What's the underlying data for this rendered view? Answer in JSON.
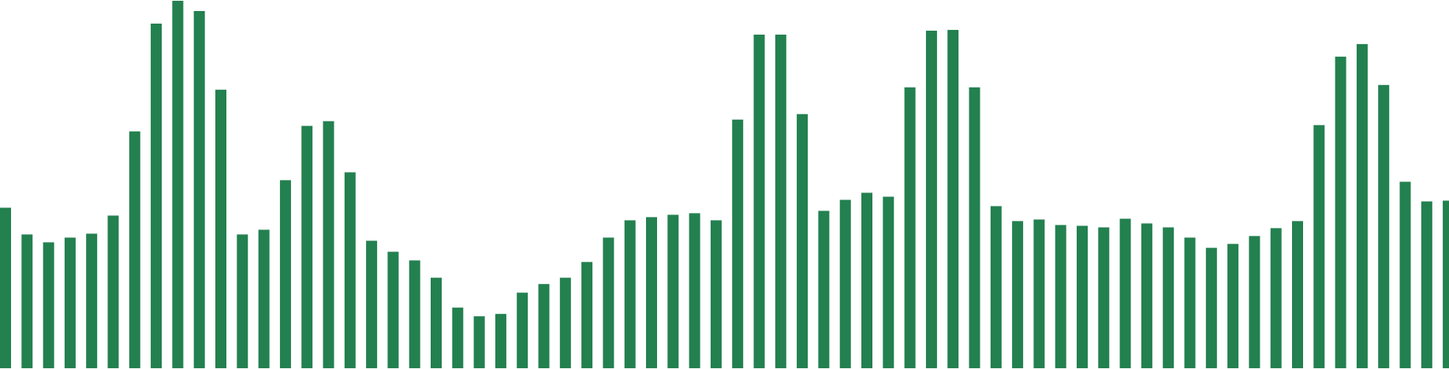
{
  "chart_data": {
    "type": "bar",
    "title": "",
    "xlabel": "",
    "ylabel": "",
    "bar_color": "#23804f",
    "grid": false,
    "legend": "none",
    "ylim": [
      0,
      468
    ],
    "values": [
      204,
      170,
      160,
      166,
      171,
      194,
      301,
      438,
      467,
      454,
      354,
      170,
      176,
      239,
      308,
      314,
      249,
      162,
      148,
      137,
      115,
      77,
      66,
      69,
      96,
      107,
      115,
      135,
      166,
      188,
      192,
      195,
      197,
      188,
      316,
      424,
      424,
      323,
      200,
      214,
      223,
      218,
      357,
      429,
      430,
      357,
      206,
      187,
      189,
      182,
      181,
      179,
      190,
      184,
      179,
      166,
      153,
      158,
      168,
      178,
      187,
      309,
      396,
      412,
      360,
      237,
      212,
      213
    ]
  }
}
